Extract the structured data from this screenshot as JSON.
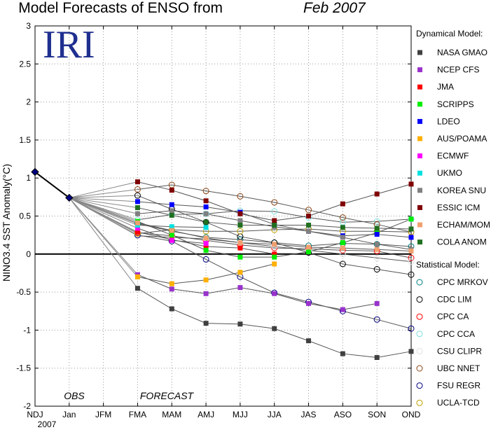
{
  "header": {
    "title": "Model Forecasts of ENSO from",
    "title_date": "Feb 2007",
    "logo": "IRI",
    "phase_obs": "OBS",
    "phase_forecast": "FORECAST"
  },
  "chart_data": {
    "type": "line",
    "ylabel": "NINO3.4 SST Anomaly(°C)",
    "xlabel": "",
    "x_year_label": "2007",
    "categories": [
      "NDJ",
      "Jan",
      "JFM",
      "FMA",
      "MAM",
      "AMJ",
      "MJJ",
      "JJA",
      "JAS",
      "ASO",
      "SON",
      "OND"
    ],
    "ylim": [
      -2,
      3
    ],
    "yticks": [
      -2,
      -1.5,
      -1,
      -0.5,
      0,
      0.5,
      1,
      1.5,
      2,
      2.5,
      3
    ],
    "grid": true,
    "legend_position": "right",
    "observed": {
      "values": [
        1.08,
        0.74
      ],
      "color": "#000080"
    },
    "legend_dynamical_title": "Dynamical Model:",
    "legend_statistical_title": "Statistical Model:",
    "dynamical": [
      {
        "name": "NASA GMAO",
        "color": "#404040",
        "values": [
          null,
          null,
          null,
          -0.45,
          -0.72,
          -0.91,
          -0.92,
          -0.98,
          -1.14,
          -1.31,
          -1.36,
          -1.28
        ]
      },
      {
        "name": "NCEP CFS",
        "color": "#9932cc",
        "values": [
          null,
          null,
          null,
          -0.27,
          -0.46,
          -0.52,
          -0.44,
          -0.52,
          -0.65,
          -0.73,
          -0.65,
          null
        ]
      },
      {
        "name": "JMA",
        "color": "#ff0000",
        "values": [
          null,
          null,
          null,
          0.29,
          0.19,
          0.1,
          0.08,
          0.0,
          null,
          null,
          null,
          null
        ]
      },
      {
        "name": "SCRIPPS",
        "color": "#00ee00",
        "values": [
          null,
          null,
          null,
          0.43,
          0.25,
          0.05,
          -0.04,
          -0.04,
          0.03,
          0.15,
          0.28,
          0.46
        ]
      },
      {
        "name": "LDEO",
        "color": "#0000ff",
        "values": [
          null,
          null,
          null,
          0.69,
          0.65,
          0.62,
          0.55,
          0.39,
          0.3,
          0.24,
          0.26,
          0.22
        ]
      },
      {
        "name": "AUS/POAMA",
        "color": "#ffb000",
        "values": [
          null,
          null,
          null,
          -0.3,
          -0.39,
          -0.34,
          -0.24,
          -0.13,
          null,
          null,
          null,
          null
        ]
      },
      {
        "name": "ECMWF",
        "color": "#ff00ff",
        "values": [
          null,
          null,
          null,
          0.34,
          0.18,
          0.14,
          null,
          null,
          null,
          null,
          null,
          null
        ]
      },
      {
        "name": "UKMO",
        "color": "#00e0e0",
        "values": [
          null,
          null,
          null,
          0.38,
          0.36,
          0.35,
          null,
          null,
          null,
          null,
          null,
          null
        ]
      },
      {
        "name": "KOREA SNU",
        "color": "#808080",
        "values": [
          null,
          null,
          null,
          0.53,
          0.57,
          0.53,
          0.44,
          0.36,
          0.3,
          0.22,
          0.13,
          0.06
        ]
      },
      {
        "name": "ESSIC ICM",
        "color": "#800000",
        "values": [
          null,
          null,
          null,
          0.95,
          0.84,
          0.7,
          0.53,
          0.44,
          0.5,
          0.66,
          0.79,
          0.92
        ]
      },
      {
        "name": "ECHAM/MOM",
        "color": "#f0a070",
        "values": [
          null,
          null,
          null,
          0.41,
          0.31,
          0.21,
          0.15,
          0.13,
          0.09,
          0.08,
          0.06,
          0.04
        ]
      },
      {
        "name": "COLA ANOM",
        "color": "#207020",
        "values": [
          null,
          null,
          null,
          0.61,
          0.51,
          0.42,
          0.38,
          0.38,
          0.38,
          0.35,
          0.34,
          0.33
        ]
      }
    ],
    "statistical": [
      {
        "name": "CPC MRKOV",
        "color": "#008080",
        "values": [
          null,
          null,
          null,
          0.4,
          0.3,
          0.22,
          0.19,
          0.15,
          0.11,
          0.14,
          0.13,
          0.1
        ]
      },
      {
        "name": "CDC LIM",
        "color": "#000000",
        "values": [
          null,
          null,
          null,
          0.77,
          0.59,
          0.42,
          0.23,
          0.15,
          0.02,
          -0.13,
          -0.2,
          -0.27
        ]
      },
      {
        "name": "CPC CA",
        "color": "#ff0000",
        "values": [
          null,
          null,
          null,
          0.28,
          0.24,
          0.18,
          0.12,
          0.08,
          0.07,
          0.05,
          0.04,
          -0.05
        ]
      },
      {
        "name": "CPC CCA",
        "color": "#80e0e0",
        "values": [
          null,
          null,
          null,
          0.45,
          0.52,
          0.53,
          0.57,
          0.56,
          0.48,
          0.42,
          0.43,
          0.46
        ]
      },
      {
        "name": "CSU CLIPR",
        "color": "#e0e0e0",
        "values": [
          null,
          null,
          null,
          0.24,
          0.22,
          0.2,
          0.15,
          0.1,
          0.05,
          0.0,
          -0.05,
          -0.1
        ]
      },
      {
        "name": "UBC NNET",
        "color": "#8b4513",
        "values": [
          null,
          null,
          null,
          0.85,
          0.91,
          0.83,
          0.76,
          0.68,
          0.58,
          0.48,
          0.39,
          0.29
        ]
      },
      {
        "name": "FSU REGR",
        "color": "#000080",
        "values": [
          null,
          null,
          null,
          0.25,
          0.17,
          -0.07,
          -0.3,
          -0.51,
          -0.63,
          -0.75,
          -0.86,
          -0.98
        ]
      },
      {
        "name": "UCLA-TCD",
        "color": "#c0a000",
        "values": [
          null,
          null,
          null,
          0.27,
          0.32,
          0.3,
          0.3,
          0.32,
          0.33,
          0.3,
          0.3,
          0.29
        ]
      }
    ]
  }
}
